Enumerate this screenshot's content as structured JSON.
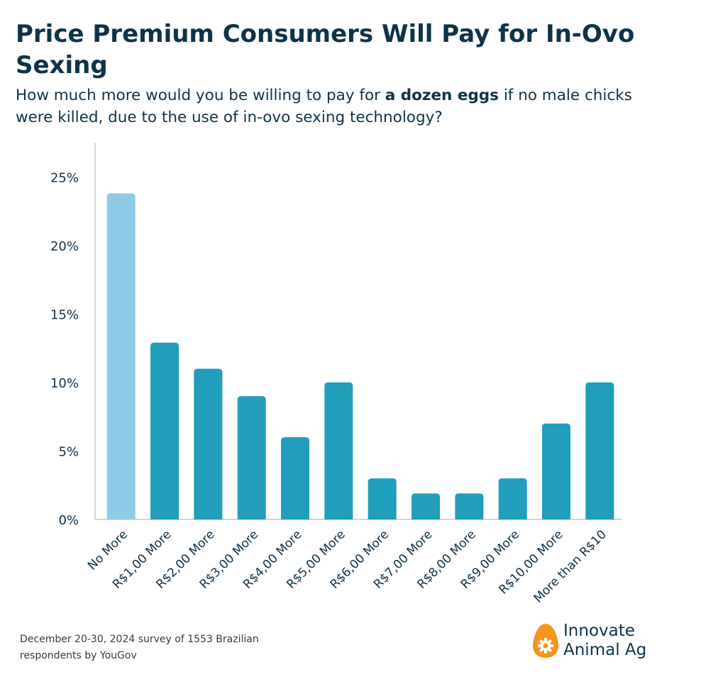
{
  "header": {
    "title": "Price Premium Consumers Will Pay for In-Ovo Sexing",
    "subtitle_before": "How much more would you be willing to pay for ",
    "subtitle_bold": "a dozen eggs",
    "subtitle_after": " if no male chicks were killed, due to the use of in-ovo sexing technology?"
  },
  "chart_data": {
    "type": "bar",
    "title": "Price Premium Consumers Will Pay for In-Ovo Sexing",
    "xlabel": "",
    "ylabel": "",
    "categories": [
      "No More",
      "R$1,00 More",
      "R$2,00 More",
      "R$3,00 More",
      "R$4,00 More",
      "R$5,00 More",
      "R$6,00 More",
      "R$7,00 More",
      "R$8,00 More",
      "R$9,00 More",
      "R$10,00 More",
      "More than R$10"
    ],
    "values": [
      23.8,
      12.9,
      11.0,
      9.0,
      6.0,
      10.0,
      3.0,
      1.9,
      1.9,
      3.0,
      7.0,
      10.0
    ],
    "ylim": [
      0,
      27.5
    ],
    "yticks": [
      0,
      5,
      10,
      15,
      20,
      25
    ],
    "ytick_labels": [
      "0%",
      "5%",
      "10%",
      "15%",
      "20%",
      "25%"
    ],
    "colors": {
      "highlight": "#8ecae6",
      "default": "#219ebc",
      "axis": "#c6c6c6",
      "text": "#0f3349"
    },
    "grid": false
  },
  "footer": {
    "source_line1": "December 20-30, 2024 survey of 1553 Brazilian",
    "source_line2": "respondents by YouGov"
  },
  "brand": {
    "line1": "Innovate",
    "line2": "Animal Ag",
    "logo_icon": "egg-gear-icon",
    "logo_color": "#f7941d"
  }
}
